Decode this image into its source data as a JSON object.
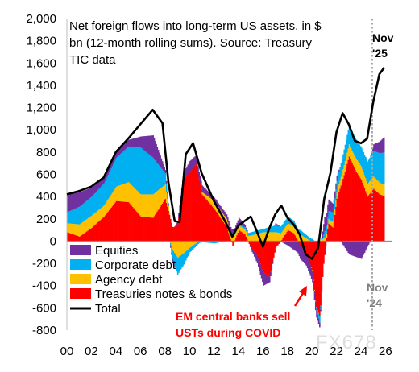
{
  "chart_data": {
    "type": "area",
    "title": "Net foreign flows into long-term US assets, in $ bn (12-month rolling sums). Source:  Treasury TIC data",
    "title_lines": [
      "Net foreign flows into long-term US assets, in $",
      "bn (12-month rolling sums). Source:  Treasury",
      "TIC data"
    ],
    "xlabel": "",
    "ylabel": "",
    "xlim": [
      2000,
      2026.5
    ],
    "ylim": [
      -800,
      2000
    ],
    "y_ticks": [
      -800,
      -600,
      -400,
      -200,
      0,
      200,
      400,
      600,
      800,
      1000,
      1200,
      1400,
      1600,
      1800,
      2000
    ],
    "y_tick_labels": [
      "-800",
      "-600",
      "-400",
      "-200",
      "0",
      "200",
      "400",
      "600",
      "800",
      "1,000",
      "1,200",
      "1,400",
      "1,600",
      "1,800",
      "2,000"
    ],
    "x_ticks": [
      2000,
      2002,
      2004,
      2006,
      2008,
      2010,
      2012,
      2014,
      2016,
      2018,
      2020,
      2022,
      2024,
      2026
    ],
    "x_tick_labels": [
      "00",
      "02",
      "04",
      "06",
      "08",
      "10",
      "12",
      "14",
      "16",
      "18",
      "20",
      "22",
      "24",
      "26"
    ],
    "grid": false,
    "legend": {
      "placement": "bottom-left",
      "entries": [
        "Equities",
        "Corporate debt",
        "Agency debt",
        "Treasuries notes & bonds",
        "Total"
      ]
    },
    "series": [
      {
        "name": "Treasuries notes & bonds",
        "color": "#ff0000",
        "points": [
          [
            2000,
            80
          ],
          [
            2001,
            40
          ],
          [
            2002,
            120
          ],
          [
            2003,
            220
          ],
          [
            2004,
            360
          ],
          [
            2005,
            350
          ],
          [
            2006,
            220
          ],
          [
            2007,
            210
          ],
          [
            2008,
            380
          ],
          [
            2008.6,
            120
          ],
          [
            2009,
            150
          ],
          [
            2009.5,
            560
          ],
          [
            2010,
            620
          ],
          [
            2010.5,
            690
          ],
          [
            2011,
            420
          ],
          [
            2012,
            290
          ],
          [
            2013,
            130
          ],
          [
            2013.5,
            -40
          ],
          [
            2014,
            100
          ],
          [
            2014.5,
            60
          ],
          [
            2015,
            -60
          ],
          [
            2015.5,
            -130
          ],
          [
            2016,
            -280
          ],
          [
            2016.5,
            -320
          ],
          [
            2017,
            -60
          ],
          [
            2017.5,
            10
          ],
          [
            2018,
            100
          ],
          [
            2018.5,
            70
          ],
          [
            2019,
            -40
          ],
          [
            2019.5,
            -110
          ],
          [
            2020,
            -260
          ],
          [
            2020.3,
            -580
          ],
          [
            2020.6,
            -680
          ],
          [
            2020.9,
            -220
          ],
          [
            2021.3,
            160
          ],
          [
            2021.7,
            120
          ],
          [
            2022,
            380
          ],
          [
            2022.5,
            560
          ],
          [
            2023,
            760
          ],
          [
            2023.5,
            640
          ],
          [
            2024,
            550
          ],
          [
            2024.5,
            400
          ],
          [
            2025,
            470
          ],
          [
            2025.5,
            420
          ],
          [
            2026,
            400
          ]
        ]
      },
      {
        "name": "Agency debt",
        "color": "#ffc000",
        "points": [
          [
            2000,
            80
          ],
          [
            2001,
            110
          ],
          [
            2002,
            110
          ],
          [
            2003,
            100
          ],
          [
            2004,
            130
          ],
          [
            2005,
            180
          ],
          [
            2006,
            200
          ],
          [
            2007,
            210
          ],
          [
            2008,
            130
          ],
          [
            2008.6,
            -80
          ],
          [
            2009,
            -150
          ],
          [
            2009.5,
            -110
          ],
          [
            2010,
            -60
          ],
          [
            2011,
            20
          ],
          [
            2012,
            70
          ],
          [
            2013,
            70
          ],
          [
            2014,
            40
          ],
          [
            2015,
            50
          ],
          [
            2016,
            80
          ],
          [
            2017,
            80
          ],
          [
            2018,
            60
          ],
          [
            2019,
            60
          ],
          [
            2020,
            -10
          ],
          [
            2020.6,
            0
          ],
          [
            2021,
            30
          ],
          [
            2022,
            60
          ],
          [
            2023,
            110
          ],
          [
            2024,
            120
          ],
          [
            2025,
            110
          ],
          [
            2026,
            100
          ]
        ]
      },
      {
        "name": "Corporate debt",
        "color": "#00b0f0",
        "points": [
          [
            2000,
            100
          ],
          [
            2001,
            160
          ],
          [
            2002,
            170
          ],
          [
            2003,
            200
          ],
          [
            2004,
            260
          ],
          [
            2005,
            320
          ],
          [
            2006,
            420
          ],
          [
            2007,
            330
          ],
          [
            2008,
            100
          ],
          [
            2008.6,
            -90
          ],
          [
            2009,
            -150
          ],
          [
            2009.5,
            -100
          ],
          [
            2010,
            -40
          ],
          [
            2011,
            -10
          ],
          [
            2012,
            -20
          ],
          [
            2013,
            0
          ],
          [
            2014,
            10
          ],
          [
            2015,
            30
          ],
          [
            2016,
            30
          ],
          [
            2017,
            60
          ],
          [
            2018,
            60
          ],
          [
            2019,
            40
          ],
          [
            2020,
            20
          ],
          [
            2020.6,
            -60
          ],
          [
            2021,
            60
          ],
          [
            2022,
            100
          ],
          [
            2023,
            170
          ],
          [
            2024,
            170
          ],
          [
            2025,
            230
          ],
          [
            2026,
            300
          ]
        ]
      },
      {
        "name": "Equities",
        "color": "#7030a0",
        "points": [
          [
            2000,
            160
          ],
          [
            2001,
            130
          ],
          [
            2002,
            80
          ],
          [
            2003,
            50
          ],
          [
            2004,
            70
          ],
          [
            2005,
            60
          ],
          [
            2006,
            100
          ],
          [
            2007,
            200
          ],
          [
            2008,
            30
          ],
          [
            2008.6,
            -30
          ],
          [
            2009,
            30
          ],
          [
            2009.5,
            60
          ],
          [
            2010,
            100
          ],
          [
            2011,
            60
          ],
          [
            2012,
            30
          ],
          [
            2013,
            40
          ],
          [
            2014,
            60
          ],
          [
            2015,
            -20
          ],
          [
            2016,
            -120
          ],
          [
            2017,
            20
          ],
          [
            2018,
            -40
          ],
          [
            2019,
            -120
          ],
          [
            2020,
            -100
          ],
          [
            2020.6,
            -40
          ],
          [
            2021,
            130
          ],
          [
            2022,
            50
          ],
          [
            2023,
            -120
          ],
          [
            2024,
            -160
          ],
          [
            2025,
            60
          ],
          [
            2026,
            150
          ]
        ]
      },
      {
        "name": "Total",
        "color": "#000000",
        "points": [
          [
            2000,
            420
          ],
          [
            2001,
            450
          ],
          [
            2002,
            490
          ],
          [
            2003,
            570
          ],
          [
            2004,
            800
          ],
          [
            2005,
            920
          ],
          [
            2006,
            1050
          ],
          [
            2007,
            1180
          ],
          [
            2007.8,
            1060
          ],
          [
            2008.3,
            520
          ],
          [
            2008.8,
            180
          ],
          [
            2009.2,
            170
          ],
          [
            2009.7,
            780
          ],
          [
            2010.3,
            880
          ],
          [
            2011,
            610
          ],
          [
            2012,
            360
          ],
          [
            2013,
            160
          ],
          [
            2013.5,
            40
          ],
          [
            2014,
            140
          ],
          [
            2015,
            220
          ],
          [
            2015.5,
            90
          ],
          [
            2016,
            -50
          ],
          [
            2016.5,
            110
          ],
          [
            2017,
            240
          ],
          [
            2017.5,
            320
          ],
          [
            2018,
            210
          ],
          [
            2018.5,
            150
          ],
          [
            2019,
            60
          ],
          [
            2019.5,
            -120
          ],
          [
            2020,
            -160
          ],
          [
            2020.5,
            -60
          ],
          [
            2021,
            380
          ],
          [
            2021.5,
            610
          ],
          [
            2022,
            980
          ],
          [
            2022.5,
            1150
          ],
          [
            2023,
            1050
          ],
          [
            2023.5,
            900
          ],
          [
            2024,
            880
          ],
          [
            2024.5,
            920
          ],
          [
            2025,
            1250
          ],
          [
            2025.5,
            1500
          ],
          [
            2025.9,
            1560
          ]
        ]
      }
    ],
    "annotations": [
      {
        "text_lines": [
          "Nov",
          "'25"
        ],
        "x": 2025.9,
        "color": "#000000"
      },
      {
        "text_lines": [
          "Nov",
          "'24"
        ],
        "x": 2024.9,
        "color": "#7f7f7f"
      },
      {
        "text_lines": [
          "EM central banks sell",
          "USTs during COVID"
        ],
        "x": 2020.2,
        "y": -420,
        "color": "#ff0000"
      }
    ],
    "vertical_line": {
      "x": 2024.9,
      "color": "#a6a6a6",
      "style": "dotted"
    },
    "watermark": "FX678"
  }
}
